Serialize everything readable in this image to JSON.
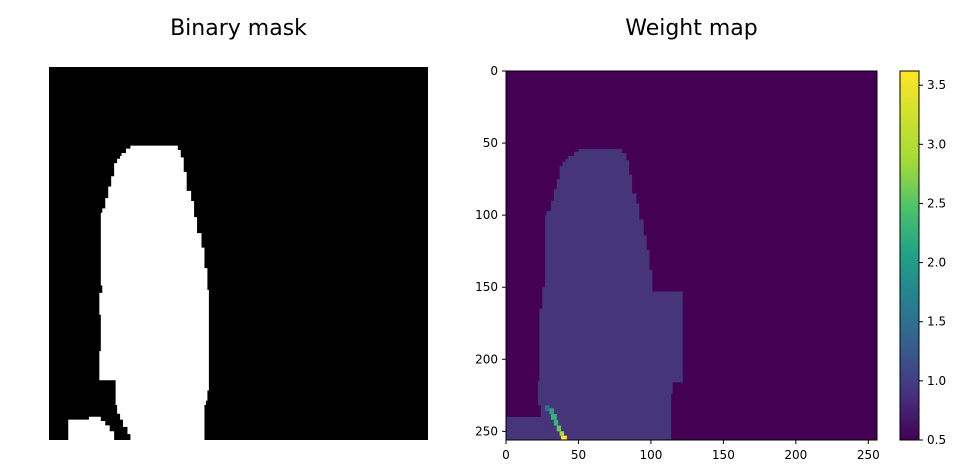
{
  "chart_data": [
    {
      "type": "heatmap",
      "title": "Binary mask",
      "axes": "off",
      "colormap": [
        "#000000",
        "#ffffff"
      ],
      "values": [
        0,
        1
      ],
      "description_values": {
        "background": 0,
        "foreground": 1
      }
    },
    {
      "type": "heatmap",
      "title": "Weight map",
      "xlim": [
        0,
        256
      ],
      "ylim": [
        256,
        0
      ],
      "xticks": [
        "0",
        "50",
        "100",
        "150",
        "200",
        "250"
      ],
      "yticks": [
        "0",
        "50",
        "100",
        "150",
        "200",
        "250"
      ],
      "colorbar": {
        "min": 0.5,
        "max": 3.62,
        "ticks": [
          "0.5",
          "1.0",
          "1.5",
          "2.0",
          "2.5",
          "3.0",
          "3.5"
        ],
        "colormap": "viridis"
      },
      "values": {
        "background": 0.5,
        "foreground": 0.85,
        "border_max": 3.6
      }
    }
  ],
  "colors": {
    "viridis_low": "#440154",
    "viridis_fg": "#47357a",
    "viridis_mid": "#21918c",
    "viridis_high": "#fde725"
  }
}
